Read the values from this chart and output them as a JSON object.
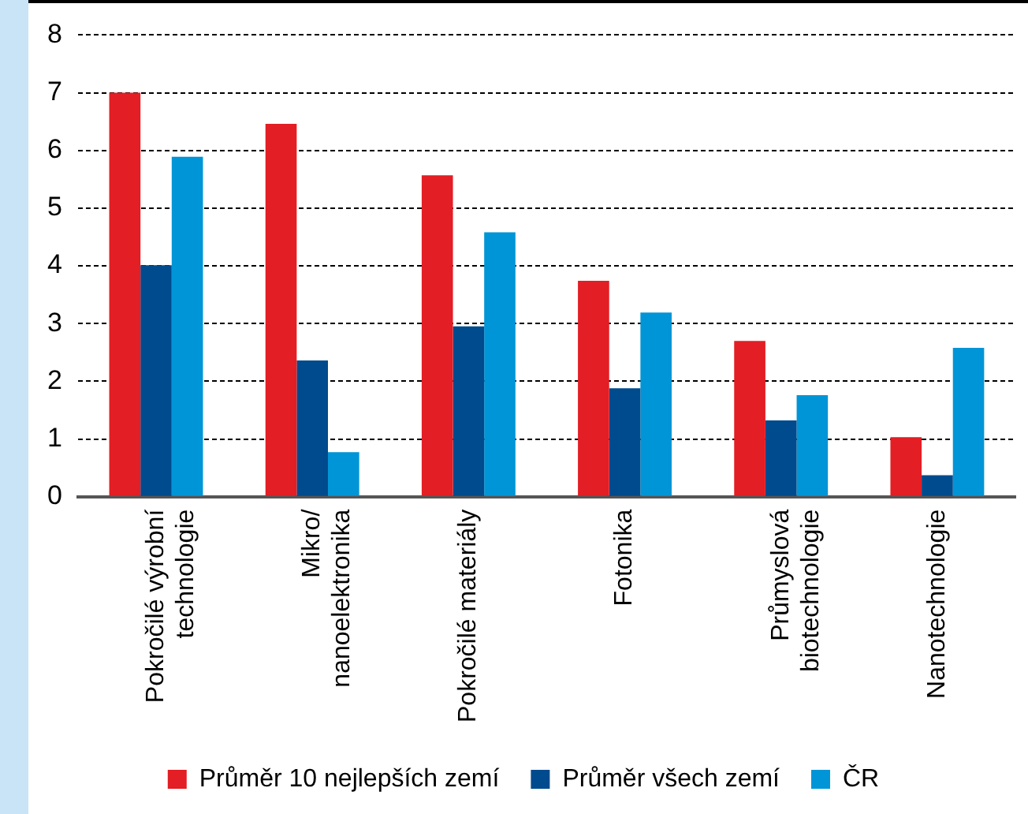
{
  "chart_data": {
    "type": "bar",
    "categories": [
      "Pokročilé výrobní technologie",
      "Mikro/nanoelektronika",
      "Pokročilé materiály",
      "Fotonika",
      "Průmyslová biotechnologie",
      "Nanotechnologie"
    ],
    "series": [
      {
        "name": "Průměr 10 nejlepších zemí",
        "color": "#e31e24",
        "values": [
          7.0,
          6.46,
          5.57,
          3.74,
          2.7,
          1.03
        ]
      },
      {
        "name": "Průměr všech zemí",
        "color": "#004b8d",
        "values": [
          4.01,
          2.36,
          2.95,
          1.88,
          1.32,
          0.37
        ]
      },
      {
        "name": "ČR",
        "color": "#0095d6",
        "values": [
          5.89,
          0.77,
          4.58,
          3.19,
          1.76,
          2.58
        ]
      }
    ],
    "ylim": [
      0,
      8
    ],
    "yticks": [
      0,
      1,
      2,
      3,
      4,
      5,
      6,
      7,
      8
    ],
    "grid": "y",
    "legend": "bottom"
  }
}
